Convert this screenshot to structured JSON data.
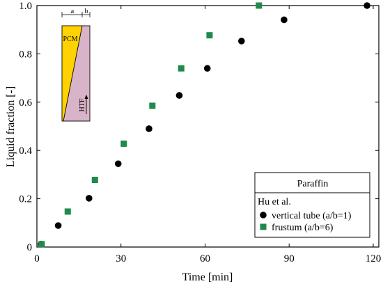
{
  "chart_data": {
    "type": "scatter",
    "xlabel": "Time [min]",
    "ylabel": "Liquid fraction [-]",
    "xlim": [
      0,
      122
    ],
    "ylim": [
      0,
      1.0
    ],
    "xticks": [
      0,
      30,
      60,
      90,
      120
    ],
    "yticks": [
      0,
      0.2,
      0.4,
      0.6,
      0.8,
      1.0
    ],
    "ytick_labels": [
      "0",
      "0.2",
      "0.4",
      "0.6",
      "0.8",
      "1.0"
    ],
    "grid": false,
    "legend": {
      "placement": "bottom-right",
      "header": "Paraffin",
      "subtitle": "Hu et al."
    },
    "series": [
      {
        "name": "vertical tube (a/b=1)",
        "marker": "circle",
        "color": "#000000",
        "x": [
          1.5,
          7.6,
          18.6,
          29.0,
          40.0,
          50.8,
          60.8,
          73.0,
          88.2,
          117.8
        ],
        "y": [
          0.012,
          0.089,
          0.202,
          0.345,
          0.49,
          0.628,
          0.74,
          0.853,
          0.941,
          1.0
        ]
      },
      {
        "name": "frustum (a/b=6)",
        "marker": "square",
        "color": "#1f8a4c",
        "x": [
          1.7,
          11.0,
          20.7,
          31.0,
          41.2,
          51.5,
          61.6,
          79.2
        ],
        "y": [
          0.012,
          0.147,
          0.278,
          0.428,
          0.585,
          0.74,
          0.877,
          1.0
        ]
      }
    ]
  },
  "inset": {
    "label_a": "a",
    "label_b": "b",
    "pcm_label": "PCM",
    "htf_label": "HTF",
    "pcm_color": "#ffd200",
    "htf_color": "#d9b3c7"
  }
}
